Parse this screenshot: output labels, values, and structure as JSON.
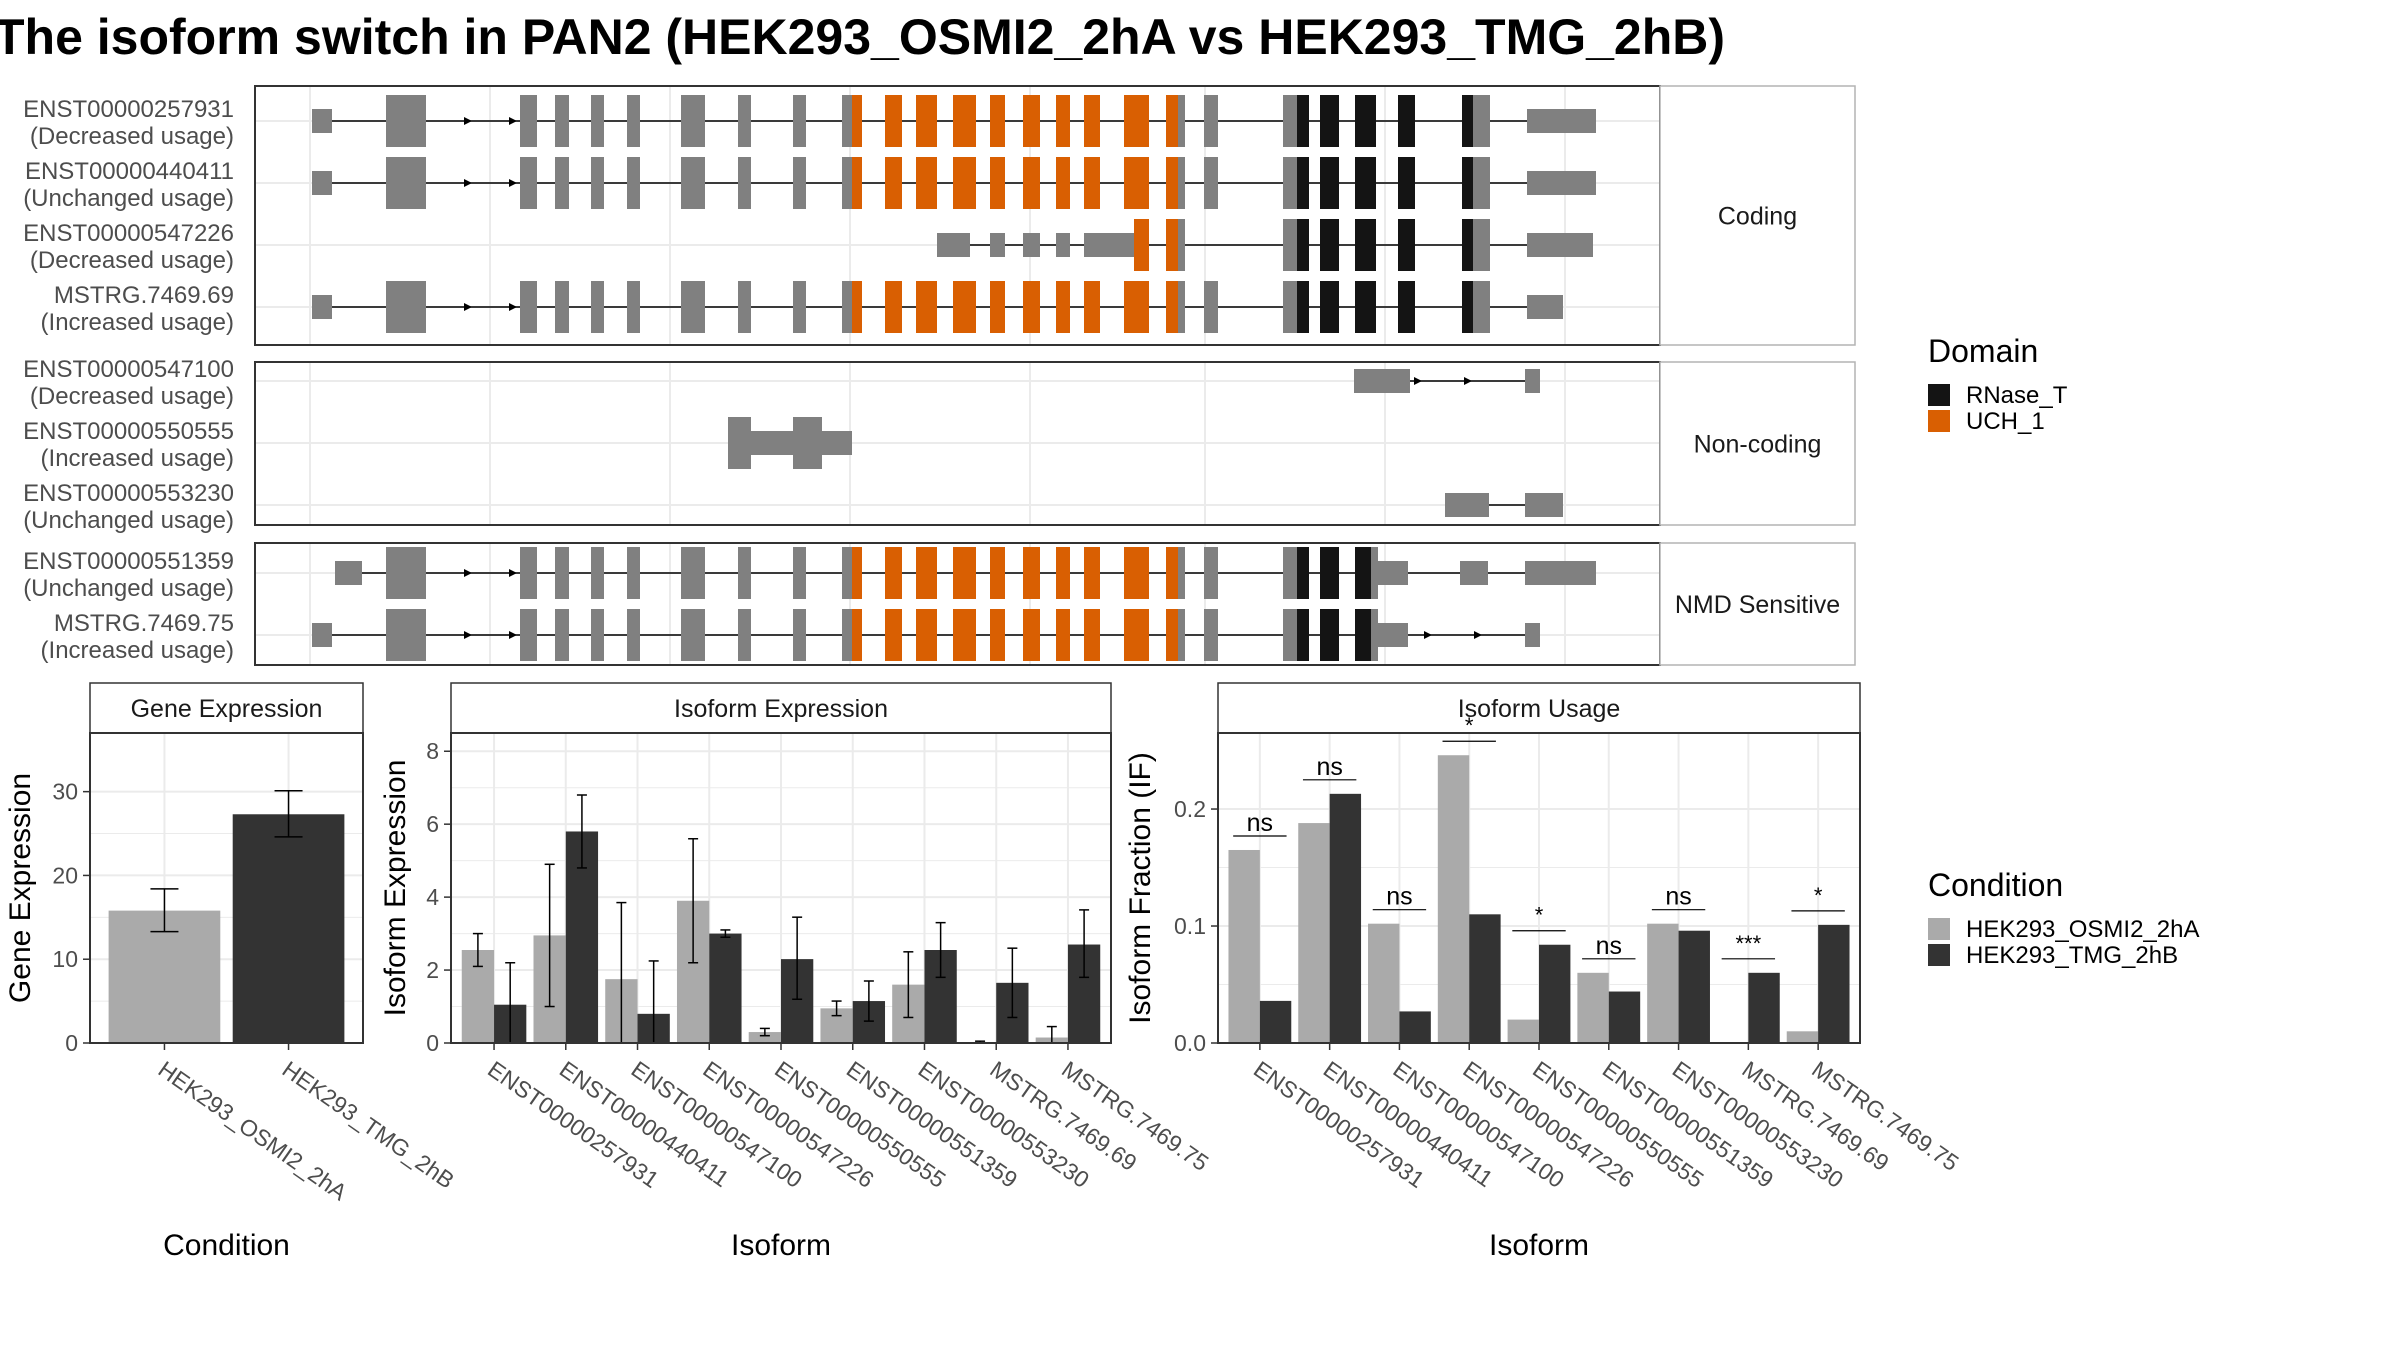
{
  "title": "The isoform switch in PAN2 (HEK293_OSMI2_2hA vs HEK293_TMG_2hB)",
  "colors": {
    "exon": "#808080",
    "rnase_t": "#141414",
    "uch_1": "#d95f02",
    "cond_a": "#aaaaaa",
    "cond_b": "#333333",
    "grid": "#ebebeb",
    "frame": "#333333",
    "strip_bg": "#ffffff"
  },
  "transcripts": {
    "groups": [
      {
        "label": "Coding",
        "rows": [
          {
            "id": "ENST00000257931",
            "usage": "(Decreased usage)"
          },
          {
            "id": "ENST00000440411",
            "usage": "(Unchanged usage)"
          },
          {
            "id": "ENST00000547226",
            "usage": "(Decreased usage)"
          },
          {
            "id": "MSTRG.7469.69",
            "usage": "(Increased usage)"
          }
        ]
      },
      {
        "label": "Non-coding",
        "rows": [
          {
            "id": "ENST00000547100",
            "usage": "(Decreased usage)"
          },
          {
            "id": "ENST00000550555",
            "usage": "(Increased usage)"
          },
          {
            "id": "ENST00000553230",
            "usage": "(Unchanged usage)"
          }
        ]
      },
      {
        "label": "NMD Sensitive",
        "rows": [
          {
            "id": "ENST00000551359",
            "usage": "(Unchanged usage)"
          },
          {
            "id": "MSTRG.7469.75",
            "usage": "(Increased usage)"
          }
        ]
      }
    ]
  },
  "domain_legend": {
    "title": "Domain",
    "items": [
      {
        "name": "RNase_T",
        "color": "#141414"
      },
      {
        "name": "UCH_1",
        "color": "#d95f02"
      }
    ]
  },
  "condition_legend": {
    "title": "Condition",
    "items": [
      {
        "name": "HEK293_OSMI2_2hA",
        "color": "#aaaaaa"
      },
      {
        "name": "HEK293_TMG_2hB",
        "color": "#333333"
      }
    ]
  },
  "chart_data": [
    {
      "type": "bar",
      "panel": "Gene Expression",
      "xlabel": "Condition",
      "ylabel": "Gene Expression",
      "ylim": [
        0,
        37
      ],
      "yticks": [
        0,
        10,
        20,
        30
      ],
      "categories": [
        "HEK293_OSMI2_2hA",
        "HEK293_TMG_2hB"
      ],
      "values": [
        15.8,
        27.3
      ],
      "error_low": [
        13.3,
        24.6
      ],
      "error_high": [
        18.4,
        30.1
      ]
    },
    {
      "type": "bar",
      "panel": "Isoform Expression",
      "xlabel": "Isoform",
      "ylabel": "Isoform Expression",
      "ylim": [
        0,
        8.5
      ],
      "yticks": [
        0,
        2,
        4,
        6,
        8
      ],
      "categories": [
        "ENST00000257931",
        "ENST00000440411",
        "ENST00000547100",
        "ENST00000547226",
        "ENST00000550555",
        "ENST00000551359",
        "ENST00000553230",
        "MSTRG.7469.69",
        "MSTRG.7469.75"
      ],
      "series": [
        {
          "name": "HEK293_OSMI2_2hA",
          "values": [
            2.55,
            2.95,
            1.75,
            3.9,
            0.3,
            0.95,
            1.6,
            0.02,
            0.15
          ],
          "error_low": [
            2.1,
            1.0,
            0.0,
            2.2,
            0.2,
            0.75,
            0.7,
            0.0,
            0.0
          ],
          "error_high": [
            3.0,
            4.9,
            3.85,
            5.6,
            0.4,
            1.15,
            2.5,
            0.05,
            0.45
          ]
        },
        {
          "name": "HEK293_TMG_2hB",
          "values": [
            1.05,
            5.8,
            0.8,
            3.0,
            2.3,
            1.15,
            2.55,
            1.65,
            2.7
          ],
          "error_low": [
            0.0,
            4.8,
            0.0,
            2.9,
            1.2,
            0.6,
            1.8,
            0.7,
            1.8
          ],
          "error_high": [
            2.2,
            6.8,
            2.25,
            3.1,
            3.45,
            1.7,
            3.3,
            2.6,
            3.65
          ]
        }
      ]
    },
    {
      "type": "bar",
      "panel": "Isoform Usage",
      "xlabel": "Isoform",
      "ylabel": "Isoform Fraction (IF)",
      "ylim": [
        0,
        0.265
      ],
      "yticks": [
        0.0,
        0.1,
        0.2
      ],
      "ytick_labels": [
        "0.0",
        "0.1",
        "0.2"
      ],
      "categories": [
        "ENST00000257931",
        "ENST00000440411",
        "ENST00000547100",
        "ENST00000547226",
        "ENST00000550555",
        "ENST00000551359",
        "ENST00000553230",
        "MSTRG.7469.69",
        "MSTRG.7469.75"
      ],
      "series": [
        {
          "name": "HEK293_OSMI2_2hA",
          "values": [
            0.165,
            0.188,
            0.102,
            0.246,
            0.02,
            0.06,
            0.102,
            0.0,
            0.01
          ]
        },
        {
          "name": "HEK293_TMG_2hB",
          "values": [
            0.036,
            0.213,
            0.027,
            0.11,
            0.084,
            0.044,
            0.096,
            0.06,
            0.101
          ]
        }
      ],
      "significance": [
        "ns",
        "ns",
        "ns",
        "*",
        "*",
        "ns",
        "ns",
        "***",
        "*"
      ]
    }
  ]
}
